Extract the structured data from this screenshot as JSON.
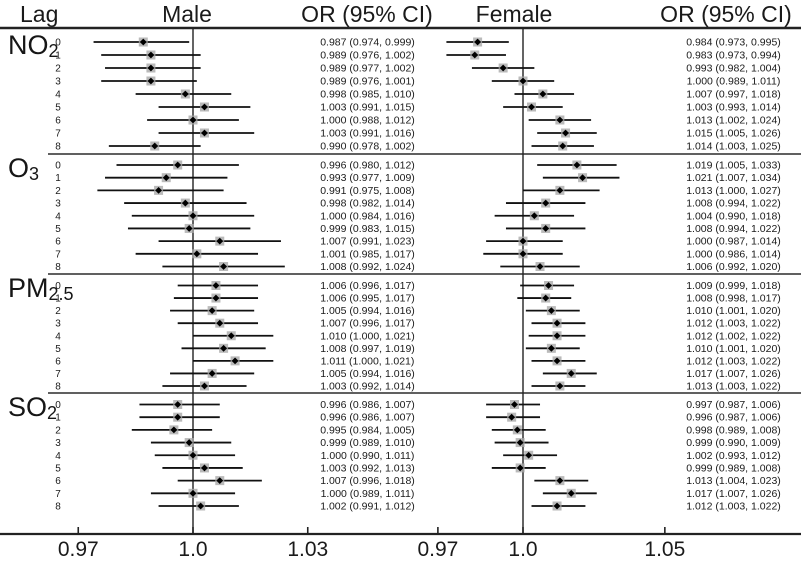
{
  "header": {
    "lag": "Lag",
    "male": "Male",
    "or_ci_male": "OR (95% CI)",
    "female": "Female",
    "or_ci_female": "OR (95% CI)"
  },
  "colors": {
    "text": "#1a1a1a",
    "line": "#222222",
    "separator": "#606060",
    "whisker": "#111111",
    "marker_box": "#a9a9a9",
    "marker_dot": "#000000"
  },
  "chart_data": {
    "type": "forest",
    "panels": [
      {
        "name": "Male",
        "ref_line": "1.0",
        "axis_ticks": [
          "0.97",
          "1.0",
          "1.03"
        ]
      },
      {
        "name": "Female",
        "ref_line": "1.0",
        "axis_ticks": [
          "0.97",
          "1.0",
          "1.05"
        ]
      }
    ],
    "groups": [
      {
        "label_base": "NO",
        "label_sub": "2",
        "lags": [
          "0",
          "1",
          "2",
          "3",
          "4",
          "5",
          "6",
          "7",
          "8"
        ],
        "male": [
          [
            0.987,
            0.974,
            0.999
          ],
          [
            0.989,
            0.976,
            1.002
          ],
          [
            0.989,
            0.977,
            1.002
          ],
          [
            0.989,
            0.976,
            1.001
          ],
          [
            0.998,
            0.985,
            1.01
          ],
          [
            1.003,
            0.991,
            1.015
          ],
          [
            1.0,
            0.988,
            1.012
          ],
          [
            1.003,
            0.991,
            1.016
          ],
          [
            0.99,
            0.978,
            1.002
          ]
        ],
        "female": [
          [
            0.984,
            0.973,
            0.995
          ],
          [
            0.983,
            0.973,
            0.994
          ],
          [
            0.993,
            0.982,
            1.004
          ],
          [
            1.0,
            0.989,
            1.011
          ],
          [
            1.007,
            0.997,
            1.018
          ],
          [
            1.003,
            0.993,
            1.014
          ],
          [
            1.013,
            1.002,
            1.024
          ],
          [
            1.015,
            1.005,
            1.026
          ],
          [
            1.014,
            1.003,
            1.025
          ]
        ]
      },
      {
        "label_base": "O",
        "label_sub": "3",
        "lags": [
          "0",
          "1",
          "2",
          "3",
          "4",
          "5",
          "6",
          "7",
          "8"
        ],
        "male": [
          [
            0.996,
            0.98,
            1.012
          ],
          [
            0.993,
            0.977,
            1.009
          ],
          [
            0.991,
            0.975,
            1.008
          ],
          [
            0.998,
            0.982,
            1.014
          ],
          [
            1.0,
            0.984,
            1.016
          ],
          [
            0.999,
            0.983,
            1.015
          ],
          [
            1.007,
            0.991,
            1.023
          ],
          [
            1.001,
            0.985,
            1.017
          ],
          [
            1.008,
            0.992,
            1.024
          ]
        ],
        "female": [
          [
            1.019,
            1.005,
            1.033
          ],
          [
            1.021,
            1.007,
            1.034
          ],
          [
            1.013,
            1.0,
            1.027
          ],
          [
            1.008,
            0.994,
            1.022
          ],
          [
            1.004,
            0.99,
            1.018
          ],
          [
            1.008,
            0.994,
            1.022
          ],
          [
            1.0,
            0.987,
            1.014
          ],
          [
            1.0,
            0.986,
            1.014
          ],
          [
            1.006,
            0.992,
            1.02
          ]
        ]
      },
      {
        "label_base": "PM",
        "label_sub": "2.5",
        "lags": [
          "0",
          "1",
          "2",
          "3",
          "4",
          "5",
          "6",
          "7",
          "8"
        ],
        "male": [
          [
            1.006,
            0.996,
            1.017
          ],
          [
            1.006,
            0.995,
            1.017
          ],
          [
            1.005,
            0.994,
            1.016
          ],
          [
            1.007,
            0.996,
            1.017
          ],
          [
            1.01,
            1.0,
            1.021
          ],
          [
            1.008,
            0.997,
            1.019
          ],
          [
            1.011,
            1.0,
            1.021
          ],
          [
            1.005,
            0.994,
            1.016
          ],
          [
            1.003,
            0.992,
            1.014
          ]
        ],
        "female": [
          [
            1.009,
            0.999,
            1.018
          ],
          [
            1.008,
            0.998,
            1.017
          ],
          [
            1.01,
            1.001,
            1.02
          ],
          [
            1.012,
            1.003,
            1.022
          ],
          [
            1.012,
            1.002,
            1.022
          ],
          [
            1.01,
            1.001,
            1.02
          ],
          [
            1.012,
            1.003,
            1.022
          ],
          [
            1.017,
            1.007,
            1.026
          ],
          [
            1.013,
            1.003,
            1.022
          ]
        ]
      },
      {
        "label_base": "SO",
        "label_sub": "2",
        "lags": [
          "0",
          "1",
          "2",
          "3",
          "4",
          "5",
          "6",
          "7",
          "8"
        ],
        "male": [
          [
            0.996,
            0.986,
            1.007
          ],
          [
            0.996,
            0.986,
            1.007
          ],
          [
            0.995,
            0.984,
            1.005
          ],
          [
            0.999,
            0.989,
            1.01
          ],
          [
            1.0,
            0.99,
            1.011
          ],
          [
            1.003,
            0.992,
            1.013
          ],
          [
            1.007,
            0.996,
            1.018
          ],
          [
            1.0,
            0.989,
            1.011
          ],
          [
            1.002,
            0.991,
            1.012
          ]
        ],
        "female": [
          [
            0.997,
            0.987,
            1.006
          ],
          [
            0.996,
            0.987,
            1.006
          ],
          [
            0.998,
            0.989,
            1.008
          ],
          [
            0.999,
            0.99,
            1.009
          ],
          [
            1.002,
            0.993,
            1.012
          ],
          [
            0.999,
            0.989,
            1.008
          ],
          [
            1.013,
            1.004,
            1.023
          ],
          [
            1.017,
            1.007,
            1.026
          ],
          [
            1.012,
            1.003,
            1.022
          ]
        ]
      }
    ]
  }
}
